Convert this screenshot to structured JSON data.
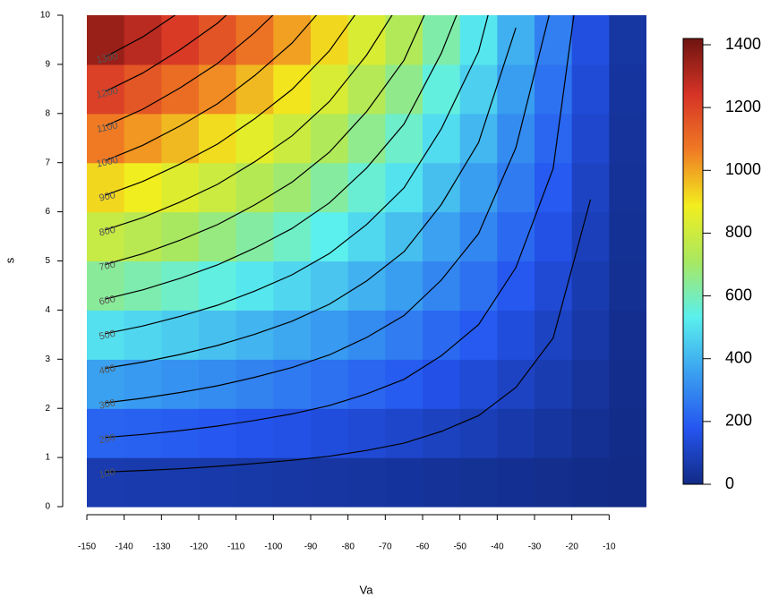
{
  "chart_data": {
    "type": "contour",
    "xlabel": "Va",
    "ylabel": "s",
    "x": [
      -145,
      -135,
      -125,
      -115,
      -105,
      -95,
      -85,
      -75,
      -65,
      -55,
      -45,
      -35,
      -25,
      -15,
      -5
    ],
    "y": [
      0.5,
      1.5,
      2.5,
      3.5,
      4.5,
      5.5,
      6.5,
      7.5,
      8.5,
      9.5
    ],
    "z": [
      [
        71,
        68,
        65,
        61,
        57,
        53,
        49,
        44,
        39,
        33,
        27,
        21,
        15,
        8,
        3
      ],
      [
        213,
        204,
        194,
        183,
        171,
        159,
        146,
        131,
        116,
        98,
        81,
        62,
        44,
        24,
        8
      ],
      [
        355,
        340,
        323,
        305,
        285,
        265,
        243,
        218,
        193,
        163,
        135,
        103,
        73,
        40,
        13
      ],
      [
        497,
        476,
        452,
        427,
        399,
        371,
        340,
        305,
        270,
        228,
        189,
        144,
        102,
        56,
        18
      ],
      [
        639,
        612,
        581,
        549,
        513,
        477,
        437,
        392,
        347,
        293,
        243,
        185,
        131,
        72,
        23
      ],
      [
        781,
        748,
        710,
        671,
        627,
        583,
        534,
        479,
        424,
        358,
        297,
        226,
        160,
        88,
        28
      ],
      [
        923,
        884,
        839,
        793,
        741,
        689,
        631,
        566,
        501,
        423,
        351,
        267,
        189,
        104,
        33
      ],
      [
        1065,
        1020,
        968,
        915,
        855,
        795,
        728,
        653,
        578,
        488,
        405,
        308,
        218,
        120,
        38
      ],
      [
        1207,
        1156,
        1097,
        1037,
        969,
        901,
        825,
        740,
        655,
        553,
        459,
        349,
        247,
        136,
        43
      ],
      [
        1349,
        1292,
        1226,
        1159,
        1083,
        1007,
        922,
        827,
        732,
        618,
        513,
        390,
        276,
        152,
        48
      ]
    ],
    "levels": [
      100,
      200,
      300,
      400,
      500,
      600,
      700,
      800,
      900,
      1000,
      1100,
      1200,
      1300
    ],
    "xlim": [
      -150,
      0
    ],
    "ylim": [
      0,
      10
    ],
    "xticks": [
      -150,
      -140,
      -130,
      -120,
      -110,
      -100,
      -90,
      -80,
      -70,
      -60,
      -50,
      -40,
      -30,
      -20,
      -10
    ],
    "yticks": [
      0,
      1,
      2,
      3,
      4,
      5,
      6,
      7,
      8,
      9,
      10
    ],
    "zlim": [
      0,
      1420
    ],
    "zticks": [
      0,
      200,
      400,
      600,
      800,
      1000,
      1200,
      1400
    ],
    "colormap": [
      "#112a84",
      "#2555f0",
      "#3aa0f0",
      "#5af0ee",
      "#a8e860",
      "#f2ee1e",
      "#f07a24",
      "#d63326",
      "#6e1410"
    ],
    "line_color": "#000000"
  }
}
